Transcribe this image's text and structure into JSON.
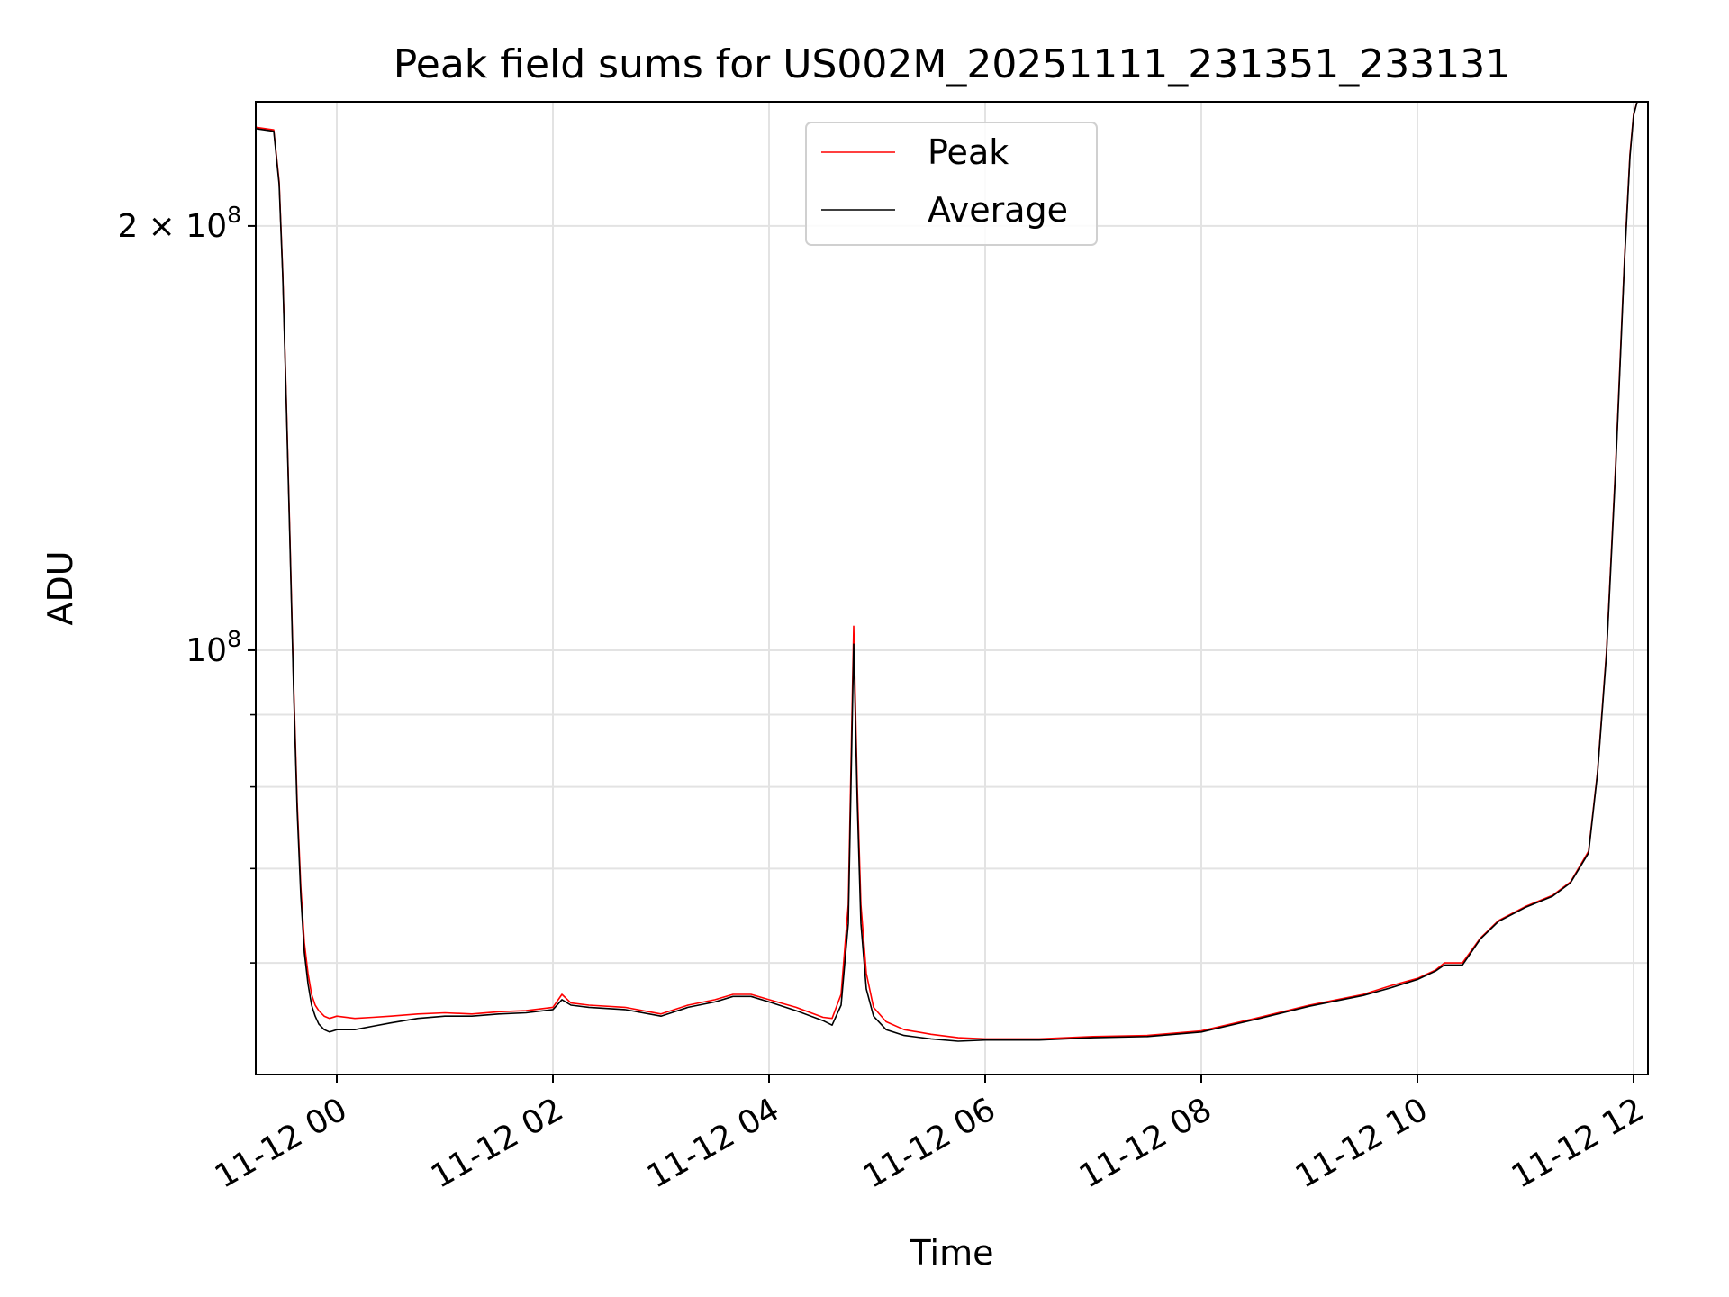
{
  "chart_data": {
    "type": "line",
    "title": "Peak field sums for US002M_20251111_231351_233131",
    "xlabel": "Time",
    "ylabel": "ADU",
    "y_scale": "log",
    "grid": true,
    "legend_position": "upper-center",
    "xlim": [
      "11-11 23:15",
      "11-12 12:08"
    ],
    "ylim": [
      50000000,
      245000000
    ],
    "x_ticks": [
      {
        "label": "11-12 00",
        "value": "11-12 00:00"
      },
      {
        "label": "11-12 02",
        "value": "11-12 02:00"
      },
      {
        "label": "11-12 04",
        "value": "11-12 04:00"
      },
      {
        "label": "11-12 06",
        "value": "11-12 06:00"
      },
      {
        "label": "11-12 08",
        "value": "11-12 08:00"
      },
      {
        "label": "11-12 10",
        "value": "11-12 10:00"
      },
      {
        "label": "11-12 12",
        "value": "11-12 12:00"
      }
    ],
    "y_major_ticks": [
      {
        "label_base": "10",
        "label_exp": "8",
        "label_prefix": "",
        "value": 100000000
      },
      {
        "label_base": "10",
        "label_exp": "8",
        "label_prefix": "2 × ",
        "value": 200000000
      }
    ],
    "y_minor_ticks": [
      60000000,
      70000000,
      80000000,
      90000000
    ],
    "series": [
      {
        "name": "Peak",
        "color": "#ff0000",
        "x": [
          "11-11 23:15",
          "11-11 23:25",
          "11-11 23:28",
          "11-11 23:30",
          "11-11 23:32",
          "11-11 23:34",
          "11-11 23:36",
          "11-11 23:38",
          "11-11 23:40",
          "11-11 23:42",
          "11-11 23:44",
          "11-11 23:46",
          "11-11 23:48",
          "11-11 23:50",
          "11-11 23:53",
          "11-11 23:56",
          "11-12 00:00",
          "11-12 00:10",
          "11-12 00:20",
          "11-12 00:30",
          "11-12 00:45",
          "11-12 01:00",
          "11-12 01:15",
          "11-12 01:30",
          "11-12 01:45",
          "11-12 02:00",
          "11-12 02:05",
          "11-12 02:10",
          "11-12 02:20",
          "11-12 02:40",
          "11-12 03:00",
          "11-12 03:15",
          "11-12 03:30",
          "11-12 03:40",
          "11-12 03:50",
          "11-12 04:00",
          "11-12 04:15",
          "11-12 04:30",
          "11-12 04:35",
          "11-12 04:40",
          "11-12 04:44",
          "11-12 04:47",
          "11-12 04:49",
          "11-12 04:51",
          "11-12 04:54",
          "11-12 04:58",
          "11-12 05:05",
          "11-12 05:15",
          "11-12 05:30",
          "11-12 05:45",
          "11-12 06:00",
          "11-12 06:30",
          "11-12 07:00",
          "11-12 07:30",
          "11-12 08:00",
          "11-12 08:30",
          "11-12 09:00",
          "11-12 09:30",
          "11-12 09:45",
          "11-12 10:00",
          "11-12 10:10",
          "11-12 10:15",
          "11-12 10:25",
          "11-12 10:35",
          "11-12 10:45",
          "11-12 11:00",
          "11-12 11:15",
          "11-12 11:25",
          "11-12 11:35",
          "11-12 11:40",
          "11-12 11:45",
          "11-12 11:50",
          "11-12 11:55",
          "11-12 11:58",
          "11-12 12:00",
          "11-12 12:02"
        ],
        "y": [
          235000000,
          234000000,
          215000000,
          185000000,
          150000000,
          120000000,
          95000000,
          78000000,
          68000000,
          62000000,
          59000000,
          57000000,
          56000000,
          55500000,
          55000000,
          54800000,
          55000000,
          54800000,
          54900000,
          55000000,
          55200000,
          55300000,
          55200000,
          55400000,
          55500000,
          55800000,
          57000000,
          56200000,
          56000000,
          55800000,
          55200000,
          56000000,
          56500000,
          57000000,
          57000000,
          56500000,
          55800000,
          54900000,
          54800000,
          57000000,
          66000000,
          104000000,
          80000000,
          66000000,
          59000000,
          55800000,
          54500000,
          53800000,
          53400000,
          53100000,
          53000000,
          53000000,
          53200000,
          53300000,
          53700000,
          54800000,
          56000000,
          57000000,
          57800000,
          58500000,
          59300000,
          60000000,
          60000000,
          62500000,
          64300000,
          65800000,
          67000000,
          68500000,
          72000000,
          82000000,
          100000000,
          135000000,
          190000000,
          225000000,
          240000000,
          245000000
        ]
      },
      {
        "name": "Average",
        "color": "#000000",
        "x": [
          "11-11 23:15",
          "11-11 23:25",
          "11-11 23:28",
          "11-11 23:30",
          "11-11 23:32",
          "11-11 23:34",
          "11-11 23:36",
          "11-11 23:38",
          "11-11 23:40",
          "11-11 23:42",
          "11-11 23:44",
          "11-11 23:46",
          "11-11 23:48",
          "11-11 23:50",
          "11-11 23:53",
          "11-11 23:56",
          "11-12 00:00",
          "11-12 00:10",
          "11-12 00:20",
          "11-12 00:30",
          "11-12 00:45",
          "11-12 01:00",
          "11-12 01:15",
          "11-12 01:30",
          "11-12 01:45",
          "11-12 02:00",
          "11-12 02:05",
          "11-12 02:10",
          "11-12 02:20",
          "11-12 02:40",
          "11-12 03:00",
          "11-12 03:15",
          "11-12 03:30",
          "11-12 03:40",
          "11-12 03:50",
          "11-12 04:00",
          "11-12 04:15",
          "11-12 04:30",
          "11-12 04:35",
          "11-12 04:40",
          "11-12 04:44",
          "11-12 04:47",
          "11-12 04:49",
          "11-12 04:51",
          "11-12 04:54",
          "11-12 04:58",
          "11-12 05:05",
          "11-12 05:15",
          "11-12 05:30",
          "11-12 05:45",
          "11-12 06:00",
          "11-12 06:30",
          "11-12 07:00",
          "11-12 07:30",
          "11-12 08:00",
          "11-12 08:30",
          "11-12 09:00",
          "11-12 09:30",
          "11-12 09:45",
          "11-12 10:00",
          "11-12 10:10",
          "11-12 10:15",
          "11-12 10:25",
          "11-12 10:35",
          "11-12 10:45",
          "11-12 11:00",
          "11-12 11:15",
          "11-12 11:25",
          "11-12 11:35",
          "11-12 11:40",
          "11-12 11:45",
          "11-12 11:50",
          "11-12 11:55",
          "11-12 11:58",
          "11-12 12:00",
          "11-12 12:02"
        ],
        "y": [
          234500000,
          233500000,
          214000000,
          184000000,
          149000000,
          119000000,
          94000000,
          77000000,
          67000000,
          61000000,
          58000000,
          56000000,
          55000000,
          54300000,
          53800000,
          53600000,
          53800000,
          53800000,
          54100000,
          54400000,
          54800000,
          55000000,
          55000000,
          55200000,
          55300000,
          55600000,
          56500000,
          56000000,
          55800000,
          55600000,
          55000000,
          55800000,
          56300000,
          56800000,
          56800000,
          56300000,
          55500000,
          54600000,
          54200000,
          56000000,
          64000000,
          101000000,
          78000000,
          64000000,
          57500000,
          55000000,
          53800000,
          53300000,
          53000000,
          52800000,
          52900000,
          52900000,
          53100000,
          53200000,
          53600000,
          54700000,
          55900000,
          56900000,
          57600000,
          58400000,
          59200000,
          59800000,
          59800000,
          62400000,
          64200000,
          65700000,
          66900000,
          68400000,
          71800000,
          81800000,
          99500000,
          134000000,
          189000000,
          224000000,
          239500000,
          245000000
        ]
      }
    ]
  }
}
